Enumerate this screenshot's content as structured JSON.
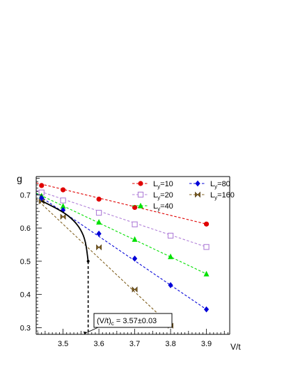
{
  "chart_data": {
    "type": "line",
    "title": "",
    "xlabel": "V/t",
    "ylabel": "g",
    "xlim": [
      3.425,
      3.965
    ],
    "ylim": [
      0.28,
      0.755
    ],
    "x_ticks": [
      3.5,
      3.6,
      3.7,
      3.8,
      3.9
    ],
    "y_ticks": [
      0.3,
      0.4,
      0.5,
      0.6,
      0.7
    ],
    "x_tick_labels": [
      "3.5",
      "3.6",
      "3.7",
      "3.8",
      "3.9"
    ],
    "y_tick_labels": [
      "0.3",
      "0.4",
      "0.5",
      "0.6",
      "0.7"
    ],
    "grid": false,
    "legend_position": "top-right",
    "series": [
      {
        "name": "10",
        "color": "#e00000",
        "marker": "circle",
        "x": [
          3.44,
          3.5,
          3.6,
          3.7,
          3.9
        ],
        "y": [
          0.728,
          0.715,
          0.687,
          0.662,
          0.612
        ],
        "trend": [
          [
            3.425,
            0.736
          ],
          [
            3.9,
            0.612
          ]
        ]
      },
      {
        "name": "20",
        "color": "#b07fd8",
        "marker": "open-square",
        "x": [
          3.44,
          3.5,
          3.6,
          3.7,
          3.8,
          3.9
        ],
        "y": [
          0.707,
          0.683,
          0.646,
          0.611,
          0.577,
          0.543
        ],
        "trend": [
          [
            3.425,
            0.714
          ],
          [
            3.9,
            0.543
          ]
        ]
      },
      {
        "name": "40",
        "color": "#00e000",
        "marker": "triangle",
        "x": [
          3.44,
          3.5,
          3.6,
          3.7,
          3.8,
          3.9
        ],
        "y": [
          0.697,
          0.666,
          0.618,
          0.566,
          0.514,
          0.462
        ],
        "trend": [
          [
            3.425,
            0.705
          ],
          [
            3.9,
            0.462
          ]
        ]
      },
      {
        "name": "80",
        "color": "#0000d8",
        "marker": "diamond",
        "x": [
          3.44,
          3.5,
          3.6,
          3.7,
          3.8,
          3.9
        ],
        "y": [
          0.69,
          0.654,
          0.583,
          0.508,
          0.428,
          0.355
        ],
        "trend": [
          [
            3.425,
            0.703
          ],
          [
            3.9,
            0.355
          ]
        ]
      },
      {
        "name": "160",
        "color": "#806020",
        "marker": "bowtie",
        "x": [
          3.44,
          3.5,
          3.6,
          3.7,
          3.8
        ],
        "y": [
          0.68,
          0.634,
          0.542,
          0.415,
          0.306
        ],
        "trend": [
          [
            3.425,
            0.688
          ],
          [
            3.8,
            0.306
          ]
        ]
      }
    ],
    "critical_curve": {
      "color": "#000000",
      "points": [
        [
          3.44,
          0.682
        ],
        [
          3.5,
          0.649
        ],
        [
          3.53,
          0.623
        ],
        [
          3.55,
          0.595
        ],
        [
          3.563,
          0.56
        ],
        [
          3.57,
          0.5
        ]
      ],
      "marker_point": [
        3.57,
        0.5
      ]
    },
    "critical_dropline": {
      "x": 3.57,
      "from_y": 0.5
    },
    "annotation": {
      "text": "(V/t)c = 3.57±0.03",
      "prefix": "(V/t)",
      "subscript": "c",
      "suffix": " = 3.57±0.03"
    },
    "legend_var": {
      "base": "L",
      "sub": "y",
      "eq": "="
    }
  }
}
